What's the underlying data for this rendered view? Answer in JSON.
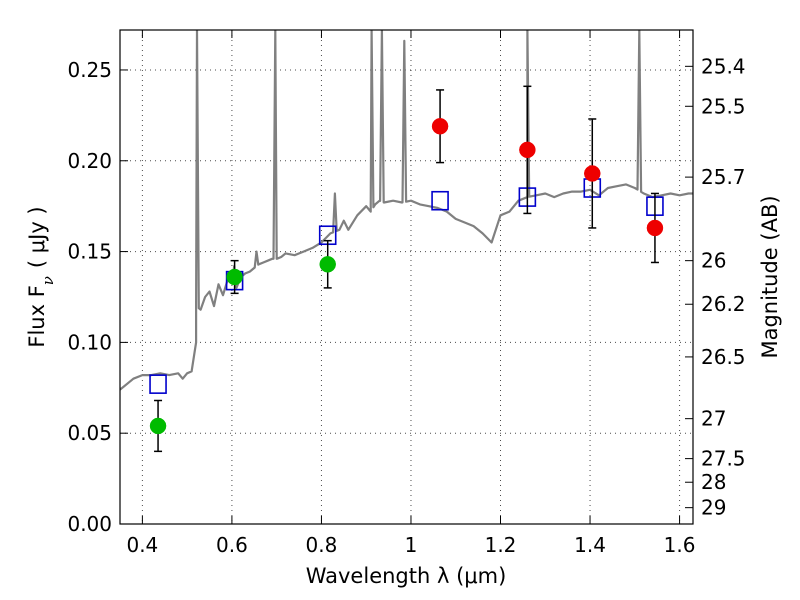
{
  "chart_data": {
    "type": "scatter",
    "title": "",
    "xlabel": "Wavelength  λ (μm)",
    "ylabel": "Flux  F",
    "ylabel_sub": "ν",
    "ylabel_units": "( μJy )",
    "ylabel_right": "Magnitude (AB)",
    "xlim": [
      0.35,
      1.63
    ],
    "ylim": [
      0.0,
      0.272
    ],
    "x_ticks": [
      0.4,
      0.6,
      0.8,
      1.0,
      1.2,
      1.4,
      1.6
    ],
    "x_tick_labels": [
      "0.4",
      "0.6",
      "0.8",
      "1",
      "1.2",
      "1.4",
      "1.6"
    ],
    "y_ticks": [
      0.0,
      0.05,
      0.1,
      0.15,
      0.2,
      0.25
    ],
    "y_tick_labels": [
      "0.00",
      "0.05",
      "0.10",
      "0.15",
      "0.20",
      "0.25"
    ],
    "mag_ticks": [
      {
        "label": "25.4",
        "flux": 0.252
      },
      {
        "label": "25.5",
        "flux": 0.23
      },
      {
        "label": "25.7",
        "flux": 0.191
      },
      {
        "label": "26",
        "flux": 0.145
      },
      {
        "label": "26.2",
        "flux": 0.121
      },
      {
        "label": "26.5",
        "flux": 0.092
      },
      {
        "label": "27",
        "flux": 0.058
      },
      {
        "label": "27.5",
        "flux": 0.036
      },
      {
        "label": "28",
        "flux": 0.023
      },
      {
        "label": "29",
        "flux": 0.009
      }
    ],
    "grid": true,
    "colors": {
      "model": "#808080",
      "green": "#00bb00",
      "red": "#ee0000",
      "square": "#0000cc",
      "errorbar": "#000000"
    },
    "series": [
      {
        "marker": "square",
        "x": [
          0.435,
          0.606,
          0.814,
          1.065,
          1.26,
          1.405,
          1.545
        ],
        "y": [
          0.077,
          0.134,
          0.159,
          0.178,
          0.18,
          0.185,
          0.175
        ]
      },
      {
        "marker": "circle-green",
        "x": [
          0.435,
          0.606,
          0.814
        ],
        "y": [
          0.054,
          0.136,
          0.143
        ],
        "err": [
          0.014,
          0.009,
          0.013
        ]
      },
      {
        "marker": "circle-red",
        "x": [
          1.065,
          1.26,
          1.405,
          1.545
        ],
        "y": [
          0.219,
          0.206,
          0.193,
          0.163
        ],
        "err": [
          0.02,
          0.035,
          0.03,
          0.019
        ]
      }
    ],
    "model_spectrum": {
      "x": [
        0.35,
        0.36,
        0.37,
        0.38,
        0.4,
        0.42,
        0.44,
        0.46,
        0.48,
        0.49,
        0.5,
        0.51,
        0.52,
        0.52,
        0.53,
        0.54,
        0.55,
        0.56,
        0.57,
        0.58,
        0.59,
        0.6,
        0.61,
        0.62,
        0.63,
        0.64,
        0.65,
        0.66,
        0.67,
        0.68,
        0.69,
        0.7,
        0.71,
        0.72,
        0.74,
        0.76,
        0.78,
        0.8,
        0.82,
        0.84,
        0.85,
        0.86,
        0.88,
        0.9,
        0.91,
        0.92,
        0.93,
        0.94,
        0.96,
        0.98,
        1.0,
        1.02,
        1.04,
        1.06,
        1.08,
        1.1,
        1.12,
        1.14,
        1.16,
        1.18,
        1.2,
        1.22,
        1.24,
        1.26,
        1.28,
        1.3,
        1.32,
        1.34,
        1.36,
        1.38,
        1.4,
        1.42,
        1.44,
        1.46,
        1.48,
        1.5,
        1.52,
        1.54,
        1.56,
        1.58,
        1.6,
        1.62,
        1.63
      ],
      "y": [
        0.074,
        0.076,
        0.078,
        0.08,
        0.082,
        0.082,
        0.083,
        0.082,
        0.083,
        0.08,
        0.083,
        0.084,
        0.1,
        0.12,
        0.118,
        0.125,
        0.128,
        0.12,
        0.132,
        0.126,
        0.134,
        0.135,
        0.13,
        0.136,
        0.138,
        0.139,
        0.141,
        0.143,
        0.144,
        0.145,
        0.146,
        0.146,
        0.147,
        0.149,
        0.148,
        0.15,
        0.152,
        0.155,
        0.16,
        0.162,
        0.167,
        0.162,
        0.17,
        0.175,
        0.172,
        0.176,
        0.178,
        0.177,
        0.178,
        0.177,
        0.178,
        0.176,
        0.175,
        0.174,
        0.172,
        0.168,
        0.166,
        0.164,
        0.16,
        0.155,
        0.17,
        0.172,
        0.178,
        0.18,
        0.181,
        0.182,
        0.18,
        0.182,
        0.183,
        0.183,
        0.184,
        0.181,
        0.185,
        0.186,
        0.187,
        0.185,
        0.182,
        0.18,
        0.181,
        0.182,
        0.181,
        0.182,
        0.182
      ],
      "emission_lines": [
        {
          "x": 0.522,
          "peak": 0.272
        },
        {
          "x": 0.605,
          "peak": 0.142
        },
        {
          "x": 0.655,
          "peak": 0.15
        },
        {
          "x": 0.697,
          "peak": 0.272
        },
        {
          "x": 0.83,
          "peak": 0.182
        },
        {
          "x": 0.912,
          "peak": 0.272
        },
        {
          "x": 0.935,
          "peak": 0.272
        },
        {
          "x": 0.985,
          "peak": 0.266
        },
        {
          "x": 1.26,
          "peak": 0.272
        },
        {
          "x": 1.51,
          "peak": 0.272
        }
      ]
    }
  }
}
